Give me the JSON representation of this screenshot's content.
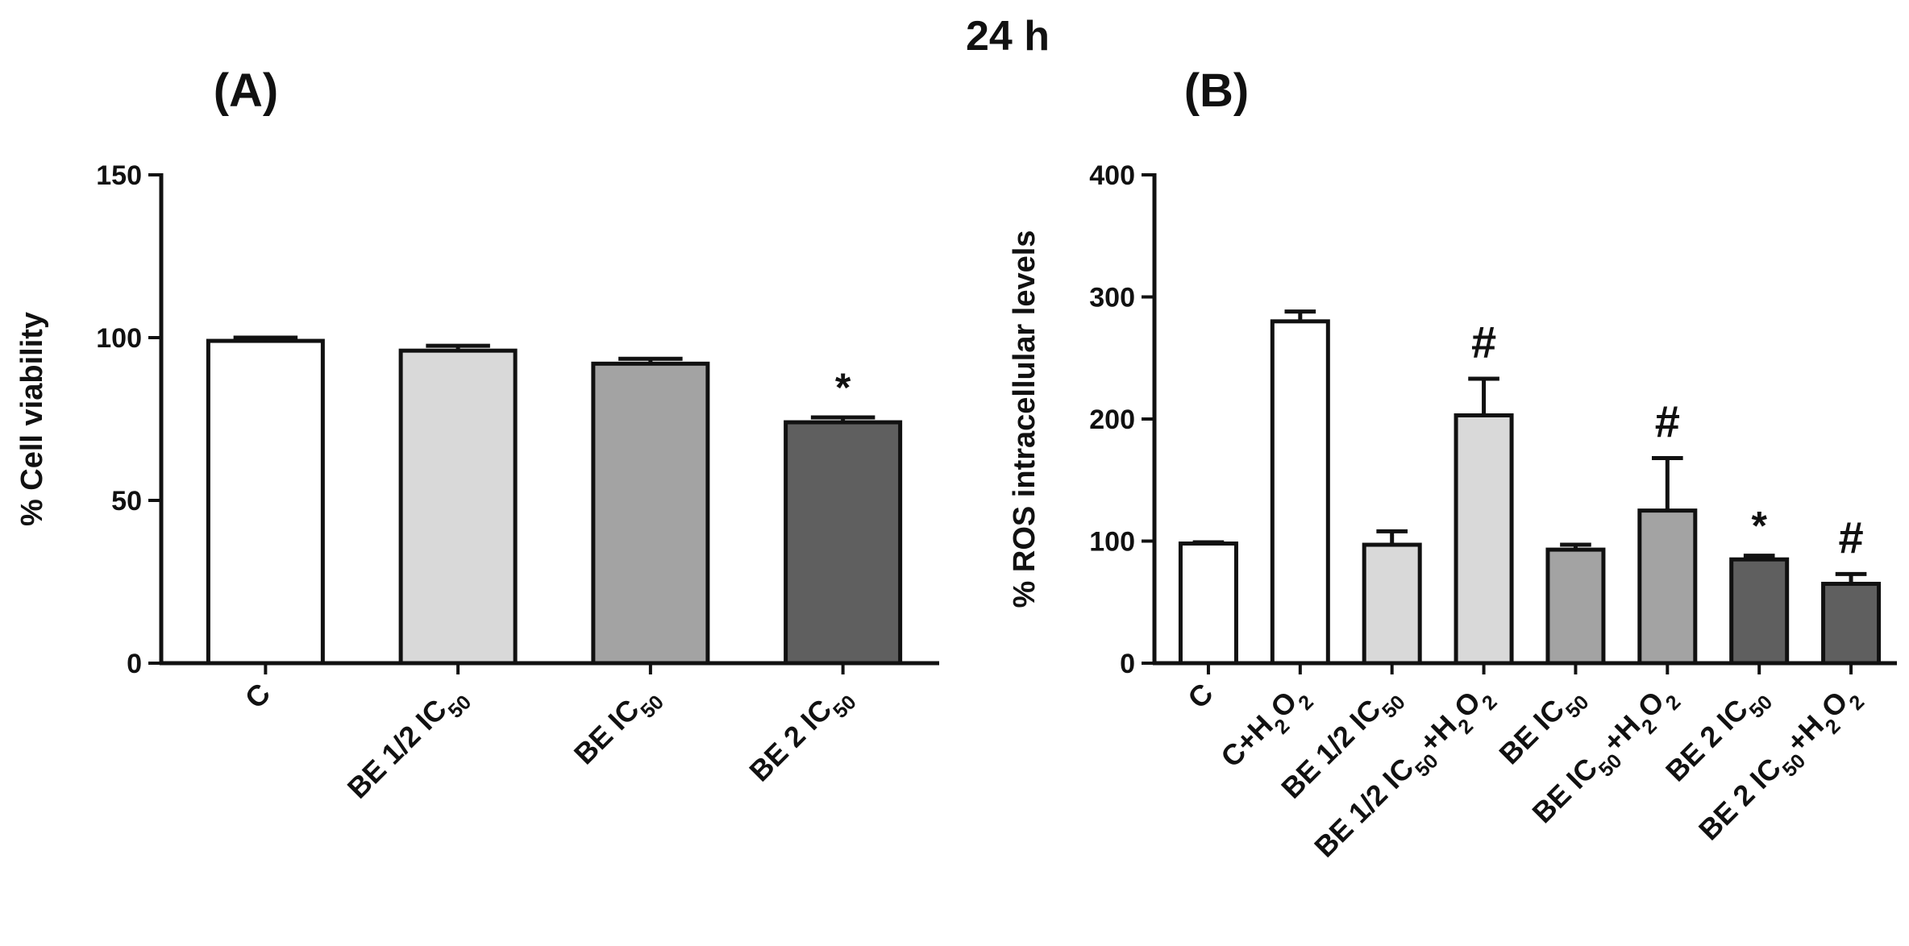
{
  "figure_title": "24 h",
  "chart_data": [
    {
      "type": "bar",
      "panel_label": "(A)",
      "ylabel": "% Cell viability",
      "xlabel": "",
      "ylim": [
        0,
        150
      ],
      "yticks": [
        0,
        50,
        100,
        150
      ],
      "grid": false,
      "categories": [
        {
          "base": "C",
          "sub": "",
          "tail": ""
        },
        {
          "base": "BE 1/2 IC",
          "sub": "50",
          "tail": ""
        },
        {
          "base": "BE IC",
          "sub": "50",
          "tail": ""
        },
        {
          "base": "BE 2 IC",
          "sub": "50",
          "tail": ""
        }
      ],
      "values": [
        99,
        96,
        92,
        74
      ],
      "errors": [
        1,
        1.5,
        1.5,
        1.5
      ],
      "fill_colors": [
        "#ffffff",
        "#d9d9d9",
        "#a3a3a3",
        "#5f5f5f"
      ],
      "annotations": [
        "",
        "",
        "",
        "*"
      ]
    },
    {
      "type": "bar",
      "panel_label": "(B)",
      "ylabel": "% ROS intracellular levels",
      "xlabel": "",
      "ylim": [
        0,
        400
      ],
      "yticks": [
        0,
        100,
        200,
        300,
        400
      ],
      "grid": false,
      "categories": [
        {
          "base": "C",
          "sub": "",
          "tail": ""
        },
        {
          "base": "C+H",
          "sub": "2",
          "tail": "O",
          "sub2": "2"
        },
        {
          "base": "BE 1/2 IC",
          "sub": "50",
          "tail": ""
        },
        {
          "base": "BE 1/2 IC",
          "sub": "50",
          "tail": "+H",
          "sub2": "2",
          "tail2": "O",
          "sub3": "2"
        },
        {
          "base": "BE IC",
          "sub": "50",
          "tail": ""
        },
        {
          "base": "BE IC",
          "sub": "50",
          "tail": "+H",
          "sub2": "2",
          "tail2": "O",
          "sub3": "2"
        },
        {
          "base": "BE 2 IC",
          "sub": "50",
          "tail": ""
        },
        {
          "base": "BE 2 IC",
          "sub": "50",
          "tail": "+H",
          "sub2": "2",
          "tail2": "O",
          "sub3": "2"
        }
      ],
      "values": [
        98,
        280,
        97,
        203,
        93,
        125,
        85,
        65
      ],
      "errors": [
        1,
        8,
        11,
        30,
        4,
        43,
        3,
        8
      ],
      "fill_colors": [
        "#ffffff",
        "#ffffff",
        "#d9d9d9",
        "#d9d9d9",
        "#a3a3a3",
        "#a3a3a3",
        "#5f5f5f",
        "#5f5f5f"
      ],
      "annotations": [
        "",
        "",
        "",
        "#",
        "",
        "#",
        "*",
        "#"
      ]
    }
  ]
}
